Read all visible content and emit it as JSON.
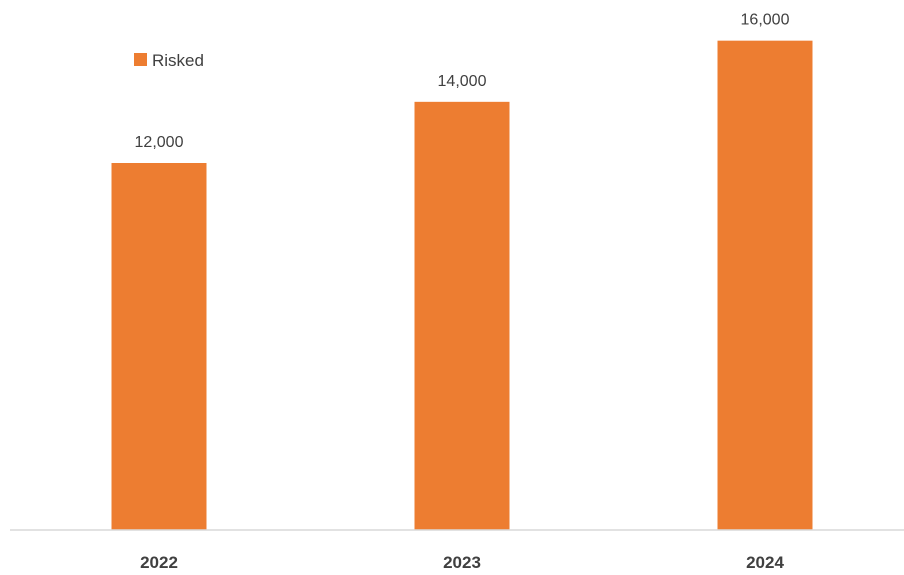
{
  "chart_data": {
    "type": "bar",
    "categories": [
      "2022",
      "2023",
      "2024"
    ],
    "series": [
      {
        "name": "Risked",
        "values": [
          12000,
          14000,
          16000
        ],
        "color": "#ED7D31"
      }
    ],
    "data_labels": [
      "12,000",
      "14,000",
      "16,000"
    ],
    "title": "",
    "xlabel": "",
    "ylabel": "",
    "ylim": [
      0,
      18000
    ],
    "grid": false,
    "legend_position": "top-left",
    "axis_color": "#D9D9D9",
    "text_color": "#404040"
  }
}
